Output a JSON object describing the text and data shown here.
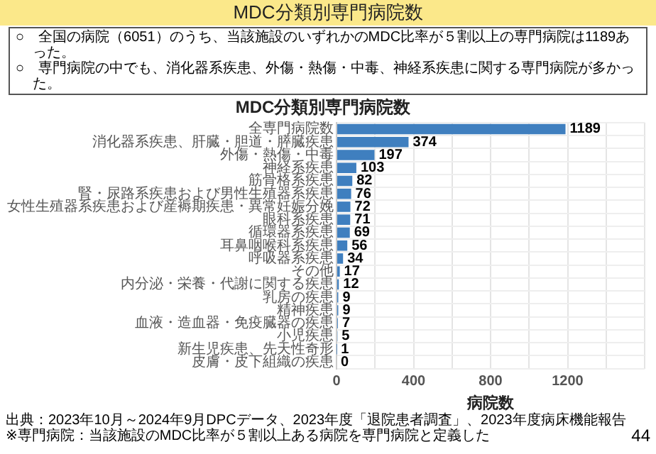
{
  "chart_data": {
    "type": "bar",
    "orientation": "horizontal",
    "title": "MDC分類別専門病院数",
    "xlabel": "病院数",
    "categories": [
      "全専門病院数",
      "消化器系疾患、肝臓・胆道・膵臓疾患",
      "外傷・熱傷・中毒",
      "神経系疾患",
      "筋骨格系疾患",
      "腎・尿路系疾患および男性生殖器系疾患",
      "女性生殖器系疾患および産褥期疾患・異常妊娠分娩",
      "眼科系疾患",
      "循環器系疾患",
      "耳鼻咽喉科系疾患",
      "呼吸器系疾患",
      "その他",
      "内分泌・栄養・代謝に関する疾患",
      "乳房の疾患",
      "精神疾患",
      "血液・造血器・免疫臓器の疾患",
      "小児疾患",
      "新生児疾患、先天性奇形",
      "皮膚・皮下組織の疾患"
    ],
    "values": [
      1189,
      374,
      197,
      103,
      82,
      76,
      72,
      71,
      69,
      56,
      34,
      17,
      12,
      9,
      9,
      7,
      5,
      1,
      0
    ],
    "color": "#3f7fbf",
    "data_labels": true,
    "grid": true,
    "legend": false,
    "xlim": [
      0,
      1600
    ],
    "xticks": [
      0,
      {
        "value": 200,
        "label": null
      },
      400,
      {
        "value": 600,
        "label": null
      },
      800,
      {
        "value": 1000,
        "label": null
      },
      1200,
      {
        "value": 1400,
        "label": null
      },
      {
        "value": 1600,
        "label": null
      }
    ],
    "annotations": [
      "MDC分類別専門病院数",
      "○　全国の病院（6051）のうち、当該施設のいずれかのMDC比率が５割以上の専門病院は1189あった。",
      "○　専門病院の中でも、消化器系疾患、外傷・熱傷・中毒、神経系疾患に関する専門病院が多かった。",
      "出典：2023年10月～2024年9月DPCデータ、2023年度「退院患者調査」、2023年度病床機能報告",
      "※専門病院：当該施設のMDC比率が５割以上ある病院を専門病院と定義した",
      "44"
    ]
  }
}
